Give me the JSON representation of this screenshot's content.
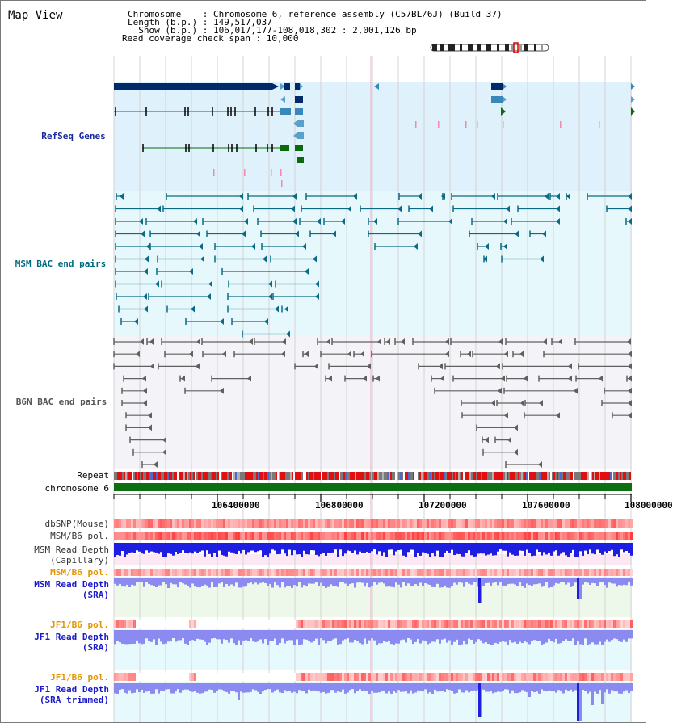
{
  "header": {
    "title": "Map View",
    "lines": [
      "Chromosome    : Chromosome 6, reference assembly (C57BL/6J) (Build 37)",
      "Length (b.p.) : 149,517,037",
      "  Show (b.p.) : 106,017,177-108,018,302 : 2,001,126 bp",
      "Read coverage check span : 10,000"
    ]
  },
  "ideogram": {
    "name": "chromosome-6-ideogram",
    "highlight_color": "#dd0000"
  },
  "tracks": {
    "refseq": {
      "label": "RefSeq Genes",
      "color": "#0a2a8a"
    },
    "msm_bac": {
      "label": "MSM BAC end pairs",
      "color": "#006688"
    },
    "b6n_bac": {
      "label": "B6N BAC end pairs",
      "color": "#555555"
    },
    "repeat": {
      "label": "Repeat"
    },
    "chromosome": {
      "label": "chromosome 6"
    },
    "dbsnp": {
      "label": "dbSNP(Mouse)"
    },
    "msm_b6_pol": {
      "label": "MSM/B6 pol."
    },
    "msm_depth_cap": {
      "label": "MSM Read Depth\n(Capillary)"
    },
    "msm_b6_pol2": {
      "label": "MSM/B6 pol."
    },
    "msm_depth_sra": {
      "label": "MSM Read Depth\n(SRA)"
    },
    "jf1_b6_pol": {
      "label": "JF1/B6 pol."
    },
    "jf1_depth_sra": {
      "label": "JF1 Read Depth\n(SRA)"
    },
    "jf1_b6_pol2": {
      "label": "JF1/B6 pol."
    },
    "jf1_depth_trim": {
      "label": "JF1 Read Depth\n(SRA trimmed)"
    }
  },
  "ruler": {
    "ticks": [
      "106400000",
      "106800000",
      "107200000",
      "107600000",
      "108000000"
    ]
  },
  "colors": {
    "refseq_bg": "#dff1fb",
    "msm_bg": "#e6f8fb",
    "b6n_bg": "#f4f4f8",
    "label_blue": "#1a2a9a",
    "label_teal": "#006b80",
    "label_orange": "#e69500",
    "depth_blue": "#1e1ee0",
    "depth_light": "#8a8af0",
    "pol_red": "#e83a3a",
    "chrom_green": "#0d6e12"
  }
}
